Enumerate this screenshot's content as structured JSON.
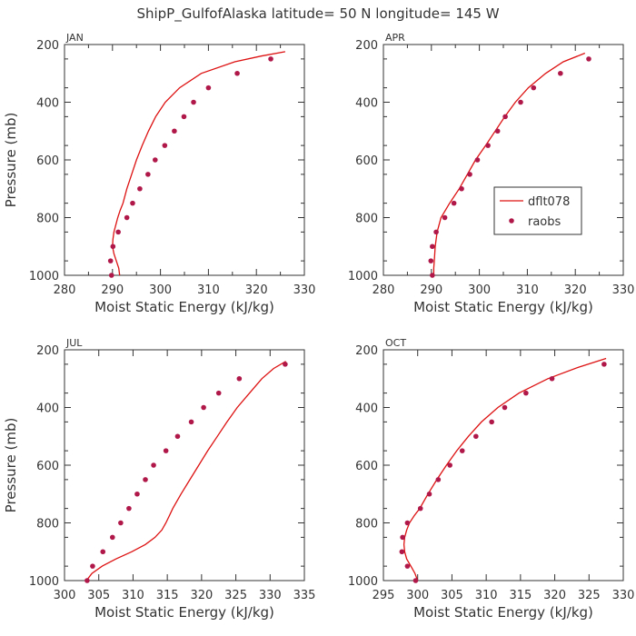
{
  "figure_title": "ShipP_GulfofAlaska   latitude= 50 N longitude= 145 W",
  "legend": {
    "model": "dflt078",
    "obs": "raobs"
  },
  "colors": {
    "line": "#dd1111",
    "dots": "#b0184a",
    "axis": "#333333",
    "text": "#333333"
  },
  "chart_data": [
    {
      "type": "line",
      "panel_label": "JAN",
      "xlabel": "Moist Static Energy (kJ/kg)",
      "ylabel": "Pressure (mb)",
      "xlim": [
        280,
        330
      ],
      "ylim": [
        1000,
        200
      ],
      "xticks": [
        280,
        285,
        290,
        295,
        300,
        305,
        310,
        315,
        320,
        325,
        330
      ],
      "xticklabels": [
        "280",
        "",
        "290",
        "",
        "300",
        "",
        "310",
        "",
        "320",
        "",
        "330"
      ],
      "yticks": [
        200,
        400,
        600,
        800,
        1000
      ],
      "series": [
        {
          "name": "dflt078",
          "kind": "line",
          "points": [
            [
              291.5,
              1000
            ],
            [
              291.3,
              975
            ],
            [
              290.8,
              950
            ],
            [
              290.3,
              925
            ],
            [
              290.0,
              900
            ],
            [
              290.1,
              875
            ],
            [
              290.3,
              850
            ],
            [
              290.7,
              825
            ],
            [
              291.1,
              800
            ],
            [
              291.6,
              775
            ],
            [
              292.2,
              750
            ],
            [
              293.0,
              700
            ],
            [
              294.0,
              650
            ],
            [
              295.0,
              600
            ],
            [
              296.2,
              550
            ],
            [
              297.5,
              500
            ],
            [
              299.0,
              450
            ],
            [
              301.0,
              400
            ],
            [
              304.0,
              350
            ],
            [
              308.5,
              300
            ],
            [
              315.5,
              260
            ],
            [
              321.0,
              240
            ],
            [
              326.0,
              225
            ]
          ]
        },
        {
          "name": "raobs",
          "kind": "scatter",
          "points": [
            [
              289.8,
              1000
            ],
            [
              289.6,
              950
            ],
            [
              290.1,
              900
            ],
            [
              291.2,
              850
            ],
            [
              293.0,
              800
            ],
            [
              294.2,
              750
            ],
            [
              295.7,
              700
            ],
            [
              297.4,
              650
            ],
            [
              298.9,
              600
            ],
            [
              300.9,
              550
            ],
            [
              302.9,
              500
            ],
            [
              304.9,
              450
            ],
            [
              306.9,
              400
            ],
            [
              310.0,
              350
            ],
            [
              316.0,
              300
            ],
            [
              323.0,
              250
            ]
          ]
        }
      ]
    },
    {
      "type": "line",
      "panel_label": "APR",
      "xlabel": "Moist Static Energy (kJ/kg)",
      "ylabel": "",
      "xlim": [
        280,
        330
      ],
      "ylim": [
        1000,
        200
      ],
      "xticks": [
        280,
        285,
        290,
        295,
        300,
        305,
        310,
        315,
        320,
        325,
        330
      ],
      "xticklabels": [
        "280",
        "",
        "290",
        "",
        "300",
        "",
        "310",
        "",
        "320",
        "",
        "330"
      ],
      "yticks": [
        200,
        400,
        600,
        800,
        1000
      ],
      "series": [
        {
          "name": "dflt078",
          "kind": "line",
          "points": [
            [
              290.5,
              1000
            ],
            [
              290.5,
              975
            ],
            [
              290.6,
              950
            ],
            [
              290.8,
              900
            ],
            [
              291.2,
              850
            ],
            [
              292.0,
              800
            ],
            [
              293.8,
              750
            ],
            [
              295.8,
              700
            ],
            [
              297.5,
              650
            ],
            [
              299.2,
              600
            ],
            [
              301.3,
              550
            ],
            [
              303.3,
              500
            ],
            [
              305.3,
              450
            ],
            [
              307.5,
              400
            ],
            [
              310.2,
              350
            ],
            [
              313.8,
              300
            ],
            [
              317.5,
              260
            ],
            [
              322.0,
              230
            ]
          ]
        },
        {
          "name": "raobs",
          "kind": "scatter",
          "points": [
            [
              290.2,
              1000
            ],
            [
              289.9,
              950
            ],
            [
              290.2,
              900
            ],
            [
              291.0,
              850
            ],
            [
              292.8,
              800
            ],
            [
              294.7,
              750
            ],
            [
              296.3,
              700
            ],
            [
              298.0,
              650
            ],
            [
              299.6,
              600
            ],
            [
              301.8,
              550
            ],
            [
              303.8,
              500
            ],
            [
              305.4,
              450
            ],
            [
              308.6,
              400
            ],
            [
              311.3,
              350
            ],
            [
              316.9,
              300
            ],
            [
              322.8,
              250
            ]
          ]
        }
      ]
    },
    {
      "type": "line",
      "panel_label": "JUL",
      "xlabel": "Moist Static Energy (kJ/kg)",
      "ylabel": "Pressure (mb)",
      "xlim": [
        300,
        335
      ],
      "ylim": [
        1000,
        200
      ],
      "xticks": [
        300,
        305,
        310,
        315,
        320,
        325,
        330,
        335
      ],
      "xticklabels": [
        "300",
        "305",
        "310",
        "315",
        "320",
        "325",
        "330",
        "335"
      ],
      "yticks": [
        200,
        400,
        600,
        800,
        1000
      ],
      "series": [
        {
          "name": "dflt078",
          "kind": "line",
          "points": [
            [
              303.2,
              1000
            ],
            [
              304.0,
              975
            ],
            [
              305.5,
              950
            ],
            [
              307.5,
              925
            ],
            [
              309.8,
              900
            ],
            [
              311.8,
              875
            ],
            [
              313.2,
              850
            ],
            [
              314.2,
              825
            ],
            [
              314.8,
              800
            ],
            [
              315.3,
              775
            ],
            [
              315.8,
              750
            ],
            [
              317.0,
              700
            ],
            [
              318.3,
              650
            ],
            [
              319.6,
              600
            ],
            [
              320.9,
              550
            ],
            [
              322.3,
              500
            ],
            [
              323.7,
              450
            ],
            [
              325.2,
              400
            ],
            [
              327.0,
              350
            ],
            [
              328.8,
              300
            ],
            [
              330.5,
              265
            ],
            [
              332.3,
              240
            ]
          ]
        },
        {
          "name": "raobs",
          "kind": "scatter",
          "points": [
            [
              303.3,
              1000
            ],
            [
              304.1,
              950
            ],
            [
              305.6,
              900
            ],
            [
              307.0,
              850
            ],
            [
              308.2,
              800
            ],
            [
              309.4,
              750
            ],
            [
              310.6,
              700
            ],
            [
              311.8,
              650
            ],
            [
              313.0,
              600
            ],
            [
              314.8,
              550
            ],
            [
              316.5,
              500
            ],
            [
              318.5,
              450
            ],
            [
              320.3,
              400
            ],
            [
              322.5,
              350
            ],
            [
              325.5,
              300
            ],
            [
              332.2,
              250
            ]
          ]
        }
      ]
    },
    {
      "type": "line",
      "panel_label": "OCT",
      "xlabel": "Moist Static Energy (kJ/kg)",
      "ylabel": "",
      "xlim": [
        295,
        330
      ],
      "ylim": [
        1000,
        200
      ],
      "xticks": [
        295,
        300,
        305,
        310,
        315,
        320,
        325,
        330
      ],
      "xticklabels": [
        "295",
        "300",
        "305",
        "310",
        "315",
        "320",
        "325",
        "330"
      ],
      "yticks": [
        200,
        400,
        600,
        800,
        1000
      ],
      "series": [
        {
          "name": "dflt078",
          "kind": "line",
          "points": [
            [
              300.0,
              1000
            ],
            [
              299.6,
              975
            ],
            [
              299.0,
              950
            ],
            [
              298.4,
              925
            ],
            [
              298.1,
              900
            ],
            [
              298.0,
              875
            ],
            [
              298.1,
              850
            ],
            [
              298.4,
              825
            ],
            [
              298.8,
              800
            ],
            [
              299.5,
              775
            ],
            [
              300.3,
              750
            ],
            [
              301.5,
              700
            ],
            [
              302.8,
              650
            ],
            [
              304.2,
              600
            ],
            [
              305.7,
              550
            ],
            [
              307.4,
              500
            ],
            [
              309.3,
              450
            ],
            [
              311.7,
              400
            ],
            [
              314.8,
              350
            ],
            [
              319.0,
              300
            ],
            [
              323.5,
              260
            ],
            [
              327.5,
              230
            ]
          ]
        },
        {
          "name": "raobs",
          "kind": "scatter",
          "points": [
            [
              299.7,
              1000
            ],
            [
              298.5,
              950
            ],
            [
              297.7,
              900
            ],
            [
              297.8,
              850
            ],
            [
              298.5,
              800
            ],
            [
              300.4,
              750
            ],
            [
              301.7,
              700
            ],
            [
              303.0,
              650
            ],
            [
              304.7,
              600
            ],
            [
              306.5,
              550
            ],
            [
              308.5,
              500
            ],
            [
              310.8,
              450
            ],
            [
              312.7,
              400
            ],
            [
              315.8,
              350
            ],
            [
              319.6,
              300
            ],
            [
              327.2,
              250
            ]
          ]
        }
      ]
    }
  ]
}
